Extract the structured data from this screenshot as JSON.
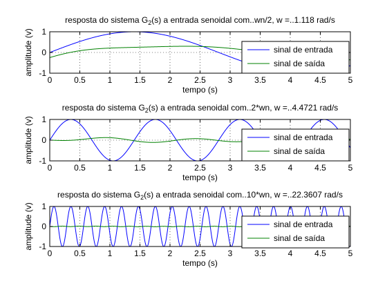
{
  "chart_data": [
    {
      "type": "line",
      "title_pre": "resposta do sistema G",
      "title_sub": "2",
      "title_post": "(s) a entrada senoidal com..wn/2, w =..1.118 rad/s",
      "xlabel": "tempo (s)",
      "ylabel": "amplitude (v)",
      "xlim": [
        0,
        5
      ],
      "ylim": [
        -1,
        1
      ],
      "xticks": [
        "0",
        "0.5",
        "1",
        "1.5",
        "2",
        "2.5",
        "3",
        "3.5",
        "4",
        "4.5",
        "5"
      ],
      "yticks": [
        "-1",
        "0",
        "1"
      ],
      "grid": true,
      "legend_position": "right",
      "omega": 1.118,
      "series": [
        {
          "name": "sinal de entrada",
          "color": "#0000ff",
          "amplitude": 1.0,
          "function": "sin(w*t)"
        },
        {
          "name": "sinal de saída",
          "color": "#008000",
          "amplitude": 0.35,
          "function": "damped sine response"
        }
      ]
    },
    {
      "type": "line",
      "title_pre": "resposta do sistema G",
      "title_sub": "2",
      "title_post": "(s) a entrada senoidal com..2*wn, w =..4.4721 rad/s",
      "xlabel": "tempo (s)",
      "ylabel": "amplitude (v)",
      "xlim": [
        0,
        5
      ],
      "ylim": [
        -1,
        1
      ],
      "xticks": [
        "0",
        "0.5",
        "1",
        "1.5",
        "2",
        "2.5",
        "3",
        "3.5",
        "4",
        "4.5",
        "5"
      ],
      "yticks": [
        "-1",
        "0",
        "1"
      ],
      "grid": true,
      "legend_position": "right",
      "omega": 4.4721,
      "series": [
        {
          "name": "sinal de entrada",
          "color": "#0000ff",
          "amplitude": 1.0,
          "function": "sin(w*t)"
        },
        {
          "name": "sinal de saída",
          "color": "#008000",
          "amplitude": 0.15,
          "function": "damped sine response"
        }
      ]
    },
    {
      "type": "line",
      "title_pre": "resposta do sistema G",
      "title_sub": "2",
      "title_post": "(s) a entrada senoidal com..10*wn, w =..22.3607 rad/s",
      "xlabel": "tempo (s)",
      "ylabel": "amplitude (v)",
      "xlim": [
        0,
        5
      ],
      "ylim": [
        -1,
        1
      ],
      "xticks": [
        "0",
        "0.5",
        "1",
        "1.5",
        "2",
        "2.5",
        "3",
        "3.5",
        "4",
        "4.5",
        "5"
      ],
      "yticks": [
        "-1",
        "0",
        "1"
      ],
      "grid": true,
      "legend_position": "right",
      "omega": 22.3607,
      "series": [
        {
          "name": "sinal de entrada",
          "color": "#0000ff",
          "amplitude": 1.0,
          "function": "sin(w*t)"
        },
        {
          "name": "sinal de saída",
          "color": "#008000",
          "amplitude": 0.01,
          "function": "damped sine response"
        }
      ]
    }
  ]
}
